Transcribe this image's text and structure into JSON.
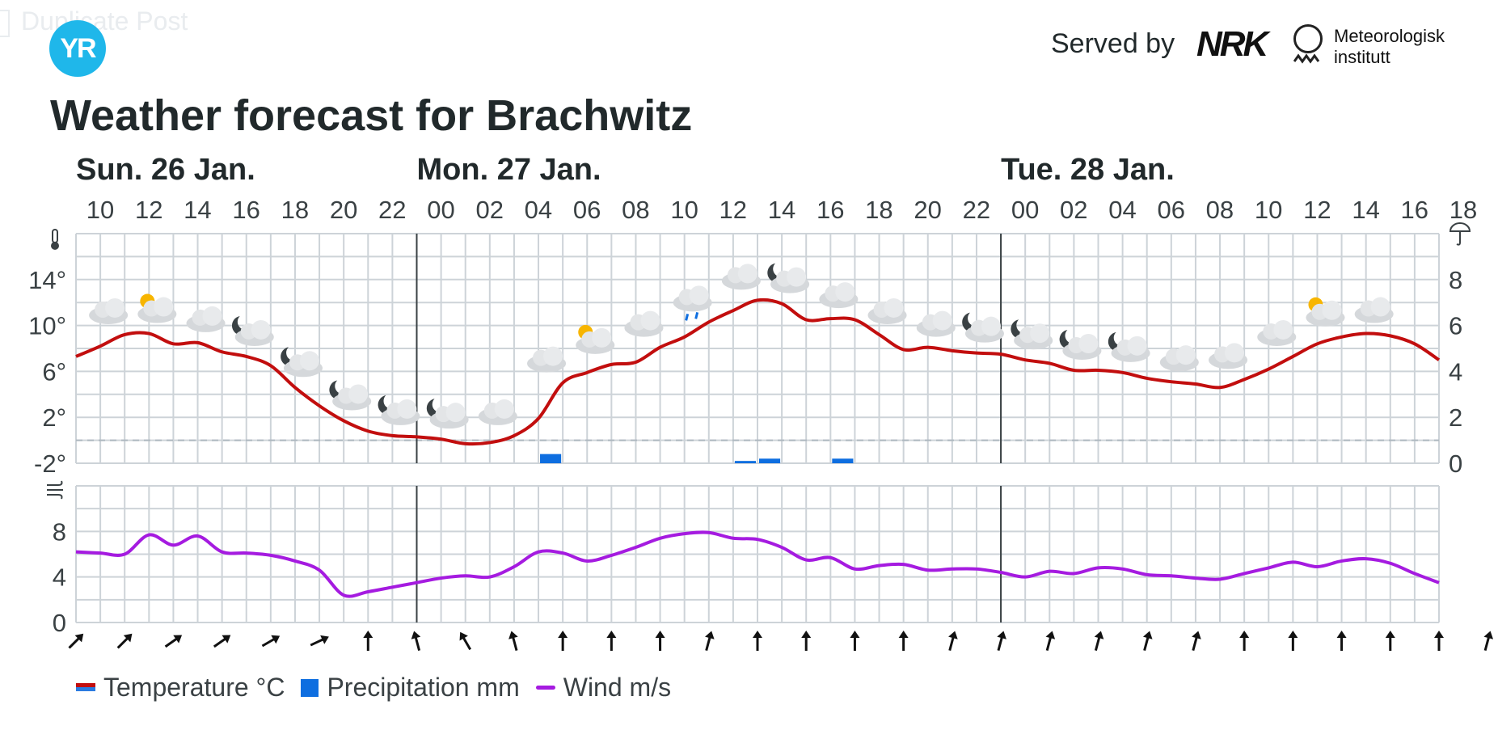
{
  "overlay_text": "Duplicate Post",
  "header": {
    "logo_text": "YR",
    "served_by": "Served by",
    "nrk_logo": "NRK",
    "met_logo_line1": "Meteorologisk",
    "met_logo_line2": "institutt"
  },
  "title": "Weather forecast for Brachwitz",
  "legend": {
    "temperature": "Temperature °C",
    "precipitation": "Precipitation mm",
    "wind": "Wind m/s"
  },
  "colors": {
    "temperature": "#c20e0e",
    "precipitation": "#0e6ee0",
    "wind": "#a51be0",
    "grid": "#cdd3d8",
    "day_divider": "#3a4144",
    "temp_swatch_top": "#c20e0e",
    "temp_swatch_bottom": "#2a7be0"
  },
  "chart_data": {
    "type": "line",
    "days": [
      {
        "label": "Sun. 26 Jan.",
        "start_hour_index": 0
      },
      {
        "label": "Mon. 27 Jan.",
        "start_hour_index": 7
      },
      {
        "label": "Tue. 28 Jan.",
        "start_hour_index": 19
      }
    ],
    "hour_ticks": [
      "10",
      "12",
      "14",
      "16",
      "18",
      "20",
      "22",
      "00",
      "02",
      "04",
      "06",
      "08",
      "10",
      "12",
      "14",
      "16",
      "18",
      "20",
      "22",
      "00",
      "02",
      "04",
      "06",
      "08",
      "10",
      "12",
      "14",
      "16",
      "18"
    ],
    "x": [
      "26 Jan 10:00",
      "26 Jan 11:00",
      "26 Jan 12:00",
      "26 Jan 13:00",
      "26 Jan 14:00",
      "26 Jan 15:00",
      "26 Jan 16:00",
      "26 Jan 17:00",
      "26 Jan 18:00",
      "26 Jan 19:00",
      "26 Jan 20:00",
      "26 Jan 21:00",
      "26 Jan 22:00",
      "26 Jan 23:00",
      "27 Jan 00:00",
      "27 Jan 01:00",
      "27 Jan 02:00",
      "27 Jan 03:00",
      "27 Jan 04:00",
      "27 Jan 05:00",
      "27 Jan 06:00",
      "27 Jan 07:00",
      "27 Jan 08:00",
      "27 Jan 09:00",
      "27 Jan 10:00",
      "27 Jan 11:00",
      "27 Jan 12:00",
      "27 Jan 13:00",
      "27 Jan 14:00",
      "27 Jan 15:00",
      "27 Jan 16:00",
      "27 Jan 17:00",
      "27 Jan 18:00",
      "27 Jan 19:00",
      "27 Jan 20:00",
      "27 Jan 21:00",
      "27 Jan 22:00",
      "27 Jan 23:00",
      "28 Jan 00:00",
      "28 Jan 01:00",
      "28 Jan 02:00",
      "28 Jan 03:00",
      "28 Jan 04:00",
      "28 Jan 05:00",
      "28 Jan 06:00",
      "28 Jan 07:00",
      "28 Jan 08:00",
      "28 Jan 09:00",
      "28 Jan 10:00",
      "28 Jan 11:00",
      "28 Jan 12:00",
      "28 Jan 13:00",
      "28 Jan 14:00",
      "28 Jan 15:00",
      "28 Jan 16:00",
      "28 Jan 17:00",
      "28 Jan 18:00"
    ],
    "temperature": [
      7.3,
      8.2,
      9.2,
      9.3,
      8.4,
      8.5,
      7.7,
      7.3,
      6.5,
      4.6,
      3.0,
      1.7,
      0.8,
      0.4,
      0.3,
      0.1,
      -0.3,
      -0.2,
      0.4,
      1.9,
      5.0,
      5.9,
      6.6,
      6.8,
      8.1,
      9.0,
      10.3,
      11.3,
      12.2,
      11.9,
      10.5,
      10.6,
      10.5,
      9.2,
      7.9,
      8.1,
      7.8,
      7.6,
      7.5,
      7.0,
      6.7,
      6.1,
      6.1,
      5.9,
      5.4,
      5.1,
      4.9,
      4.6,
      5.3,
      6.2,
      7.3,
      8.4,
      9.0,
      9.3,
      9.1,
      8.4,
      7.0
    ],
    "precipitation": [
      0,
      0,
      0,
      0,
      0,
      0,
      0,
      0,
      0,
      0,
      0,
      0,
      0,
      0,
      0,
      0,
      0,
      0,
      0,
      0.4,
      0,
      0,
      0,
      0,
      0,
      0,
      0,
      0.1,
      0.2,
      0,
      0,
      0.2,
      0,
      0,
      0,
      0,
      0,
      0,
      0,
      0,
      0,
      0,
      0,
      0,
      0,
      0,
      0,
      0,
      0,
      0,
      0,
      0,
      0,
      0,
      0,
      0,
      0
    ],
    "wind": [
      6.2,
      6.1,
      6.0,
      7.7,
      6.8,
      7.6,
      6.2,
      6.1,
      5.9,
      5.4,
      4.6,
      2.4,
      2.7,
      3.1,
      3.5,
      3.9,
      4.1,
      4.0,
      4.9,
      6.2,
      6.1,
      5.4,
      5.9,
      6.6,
      7.4,
      7.8,
      7.9,
      7.4,
      7.3,
      6.6,
      5.5,
      5.7,
      4.7,
      5.0,
      5.1,
      4.6,
      4.7,
      4.7,
      4.4,
      4.0,
      4.5,
      4.3,
      4.8,
      4.7,
      4.2,
      4.1,
      3.9,
      3.8,
      4.3,
      4.8,
      5.3,
      4.9,
      5.4,
      5.6,
      5.2,
      4.3,
      3.5
    ],
    "wind_direction_deg": [
      45,
      45,
      55,
      55,
      60,
      65,
      0,
      345,
      330,
      345,
      0,
      0,
      0,
      15,
      0,
      0,
      0,
      0,
      15,
      15,
      15,
      15,
      15,
      15,
      0,
      0,
      0,
      0,
      0,
      15,
      15,
      15,
      15
    ],
    "weather_icons": [
      "cloudy",
      "partly-sunny",
      "cloudy",
      "cloud-night",
      "cloud-night",
      "cloud-night",
      "cloud-night",
      "cloud-night",
      "cloudy",
      "cloudy",
      "partly-sunny",
      "cloudy",
      "cloud-rain",
      "cloudy",
      "cloud-night",
      "cloudy",
      "cloudy",
      "cloudy",
      "cloud-night",
      "cloud-night",
      "cloud-night",
      "cloud-night",
      "cloudy",
      "cloudy",
      "cloudy",
      "partly-sunny",
      "cloudy"
    ],
    "temperature_axis": {
      "ticks": [
        "14°",
        "10°",
        "6°",
        "2°",
        "-2°"
      ],
      "ylim": [
        -2,
        18
      ]
    },
    "precipitation_axis": {
      "ticks": [
        "8",
        "6",
        "4",
        "2",
        "0"
      ],
      "ylim": [
        0,
        10
      ]
    },
    "wind_axis": {
      "ticks": [
        "8",
        "4",
        "0"
      ],
      "ylim": [
        0,
        12
      ]
    }
  }
}
